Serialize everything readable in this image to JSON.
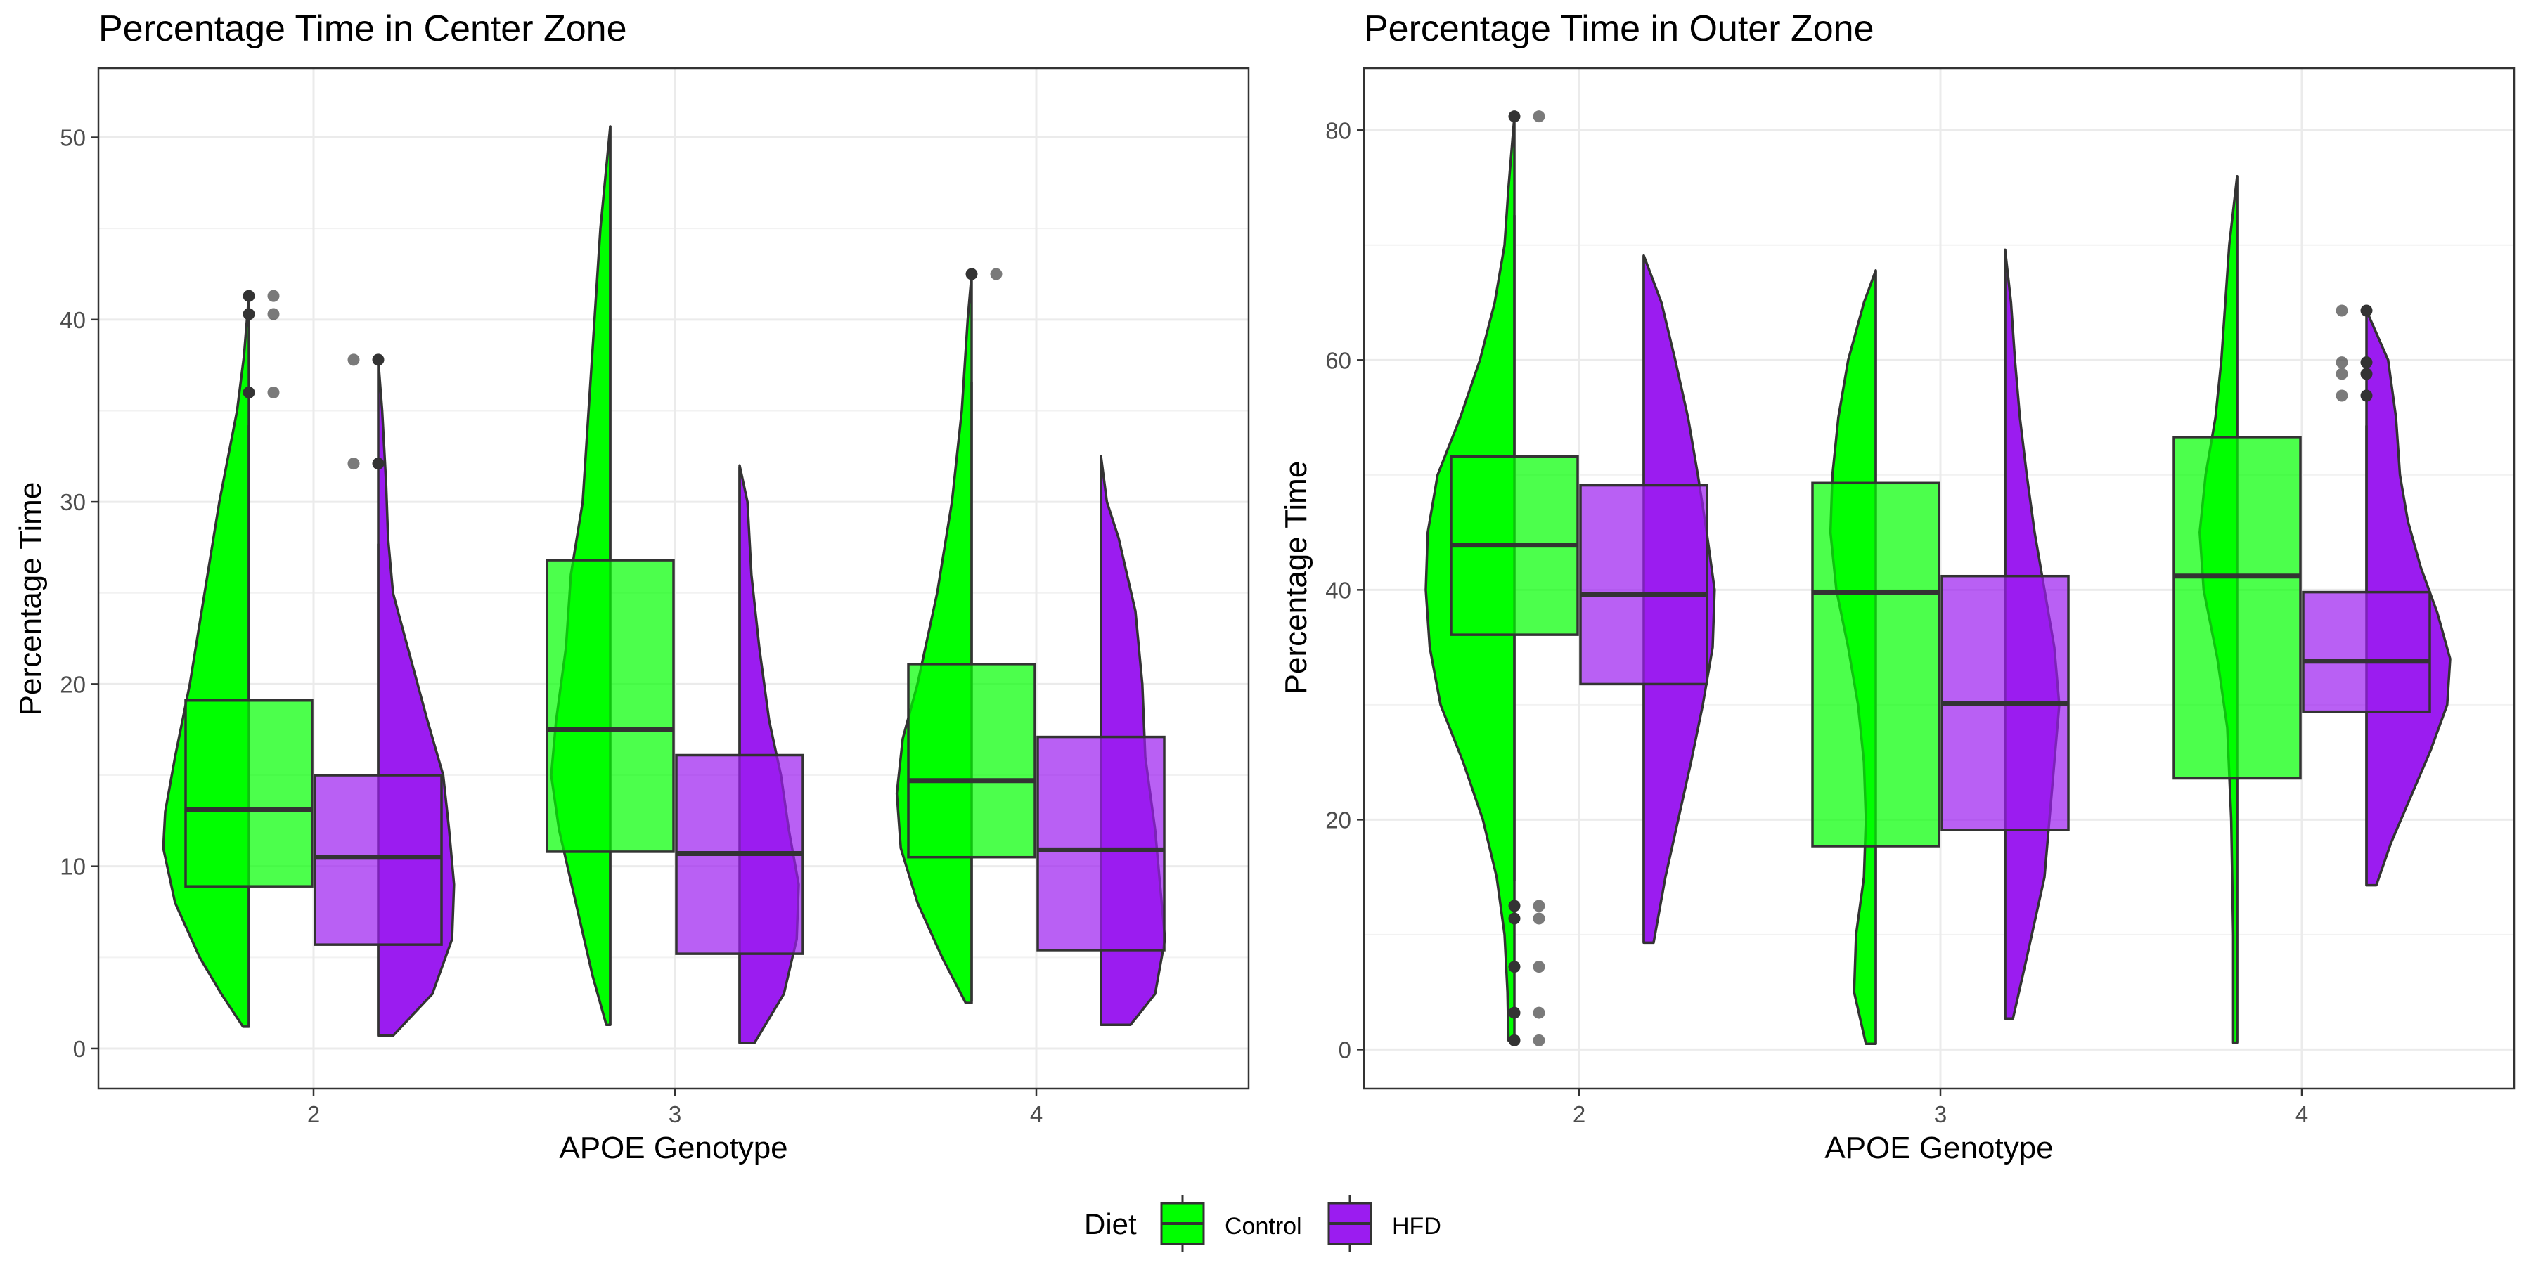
{
  "figure": {
    "legend": {
      "title": "Diet",
      "entries": [
        {
          "label": "Control",
          "color": "#00ff00"
        },
        {
          "label": "HFD",
          "color": "#9b1cf0"
        }
      ],
      "position": "bottom-center"
    }
  },
  "chart_data": [
    {
      "type": "violin+box",
      "title": "Percentage Time in Center Zone",
      "xlabel": "APOE Genotype",
      "ylabel": "Percentage Time",
      "categories": [
        "2",
        "3",
        "4"
      ],
      "ylim": [
        -2.2,
        53.8
      ],
      "yticks": [
        0,
        10,
        20,
        30,
        40,
        50
      ],
      "grid": true,
      "series": [
        {
          "name": "Control",
          "color": "#00ff00",
          "groups": [
            {
              "category": "2",
              "box": {
                "q1": 8.9,
                "median": 13.1,
                "q3": 19.1,
                "whisker_low": 1.2,
                "whisker_high": 34.2
              },
              "outliers": [
                36.0,
                40.3,
                41.3
              ],
              "violin": [
                [
                  1.2,
                  0.06
                ],
                [
                  3.0,
                  0.28
                ],
                [
                  5.0,
                  0.5
                ],
                [
                  8.0,
                  0.75
                ],
                [
                  11.0,
                  0.87
                ],
                [
                  13.0,
                  0.85
                ],
                [
                  16.0,
                  0.75
                ],
                [
                  20.0,
                  0.6
                ],
                [
                  25.0,
                  0.45
                ],
                [
                  30.0,
                  0.3
                ],
                [
                  35.0,
                  0.12
                ],
                [
                  38.0,
                  0.05
                ],
                [
                  41.3,
                  0.0
                ]
              ]
            },
            {
              "category": "3",
              "box": {
                "q1": 10.8,
                "median": 17.5,
                "q3": 26.8,
                "whisker_low": 1.3,
                "whisker_high": 50.6
              },
              "outliers": [],
              "violin": [
                [
                  1.3,
                  0.04
                ],
                [
                  4.0,
                  0.18
                ],
                [
                  8.0,
                  0.35
                ],
                [
                  12.0,
                  0.52
                ],
                [
                  15.0,
                  0.6
                ],
                [
                  18.0,
                  0.55
                ],
                [
                  22.0,
                  0.45
                ],
                [
                  26.0,
                  0.4
                ],
                [
                  30.0,
                  0.28
                ],
                [
                  35.0,
                  0.22
                ],
                [
                  40.0,
                  0.16
                ],
                [
                  45.0,
                  0.1
                ],
                [
                  50.6,
                  0.0
                ]
              ]
            },
            {
              "category": "4",
              "box": {
                "q1": 10.5,
                "median": 14.7,
                "q3": 21.1,
                "whisker_low": 2.6,
                "whisker_high": 36.6
              },
              "outliers": [
                42.5
              ],
              "violin": [
                [
                  2.5,
                  0.06
                ],
                [
                  5.0,
                  0.3
                ],
                [
                  8.0,
                  0.55
                ],
                [
                  11.0,
                  0.72
                ],
                [
                  14.0,
                  0.76
                ],
                [
                  17.0,
                  0.7
                ],
                [
                  20.0,
                  0.55
                ],
                [
                  25.0,
                  0.35
                ],
                [
                  30.0,
                  0.2
                ],
                [
                  35.0,
                  0.1
                ],
                [
                  40.0,
                  0.04
                ],
                [
                  42.5,
                  0.0
                ]
              ]
            }
          ]
        },
        {
          "name": "HFD",
          "color": "#9b1cf0",
          "groups": [
            {
              "category": "2",
              "box": {
                "q1": 5.7,
                "median": 10.5,
                "q3": 15.0,
                "whisker_low": 0.7,
                "whisker_high": 27.7
              },
              "outliers": [
                32.1,
                37.8
              ],
              "violin": [
                [
                  0.7,
                  0.15
                ],
                [
                  3.0,
                  0.55
                ],
                [
                  6.0,
                  0.75
                ],
                [
                  9.0,
                  0.77
                ],
                [
                  12.0,
                  0.72
                ],
                [
                  15.0,
                  0.66
                ],
                [
                  18.0,
                  0.5
                ],
                [
                  21.0,
                  0.35
                ],
                [
                  25.0,
                  0.15
                ],
                [
                  28.0,
                  0.1
                ],
                [
                  31.0,
                  0.08
                ],
                [
                  35.0,
                  0.04
                ],
                [
                  37.8,
                  0.0
                ]
              ]
            },
            {
              "category": "3",
              "box": {
                "q1": 5.2,
                "median": 10.7,
                "q3": 16.1,
                "whisker_low": 0.3,
                "whisker_high": 31.9
              },
              "outliers": [],
              "violin": [
                [
                  0.3,
                  0.15
                ],
                [
                  3.0,
                  0.45
                ],
                [
                  6.0,
                  0.58
                ],
                [
                  9.0,
                  0.6
                ],
                [
                  12.0,
                  0.5
                ],
                [
                  15.0,
                  0.42
                ],
                [
                  18.0,
                  0.3
                ],
                [
                  22.0,
                  0.2
                ],
                [
                  26.0,
                  0.12
                ],
                [
                  30.0,
                  0.08
                ],
                [
                  32.0,
                  0.0
                ]
              ]
            },
            {
              "category": "4",
              "box": {
                "q1": 5.4,
                "median": 10.9,
                "q3": 17.1,
                "whisker_low": 1.3,
                "whisker_high": 32.5
              },
              "outliers": [],
              "violin": [
                [
                  1.3,
                  0.3
                ],
                [
                  3.0,
                  0.55
                ],
                [
                  6.0,
                  0.65
                ],
                [
                  9.0,
                  0.6
                ],
                [
                  12.0,
                  0.55
                ],
                [
                  16.0,
                  0.45
                ],
                [
                  20.0,
                  0.42
                ],
                [
                  24.0,
                  0.35
                ],
                [
                  28.0,
                  0.18
                ],
                [
                  30.0,
                  0.06
                ],
                [
                  32.5,
                  0.0
                ]
              ]
            }
          ]
        }
      ]
    },
    {
      "type": "violin+box",
      "title": "Percentage Time in Outer Zone",
      "xlabel": "APOE Genotype",
      "ylabel": "Percentage Time",
      "categories": [
        "2",
        "3",
        "4"
      ],
      "ylim": [
        -3.4,
        85.4
      ],
      "yticks": [
        0,
        20,
        40,
        60,
        80
      ],
      "grid": true,
      "series": [
        {
          "name": "Control",
          "color": "#00ff00",
          "groups": [
            {
              "category": "2",
              "box": {
                "q1": 36.1,
                "median": 43.9,
                "q3": 51.6,
                "whisker_low": 14.7,
                "whisker_high": 72.6
              },
              "outliers": [
                0.8,
                3.2,
                7.2,
                11.4,
                12.5,
                81.2
              ],
              "violin": [
                [
                  0.8,
                  0.06
                ],
                [
                  5.0,
                  0.07
                ],
                [
                  10.0,
                  0.1
                ],
                [
                  15.0,
                  0.18
                ],
                [
                  20.0,
                  0.32
                ],
                [
                  25.0,
                  0.52
                ],
                [
                  30.0,
                  0.75
                ],
                [
                  35.0,
                  0.86
                ],
                [
                  40.0,
                  0.9
                ],
                [
                  45.0,
                  0.88
                ],
                [
                  50.0,
                  0.78
                ],
                [
                  55.0,
                  0.55
                ],
                [
                  60.0,
                  0.35
                ],
                [
                  65.0,
                  0.2
                ],
                [
                  70.0,
                  0.1
                ],
                [
                  75.0,
                  0.06
                ],
                [
                  81.2,
                  0.0
                ]
              ]
            },
            {
              "category": "3",
              "box": {
                "q1": 17.7,
                "median": 39.8,
                "q3": 49.3,
                "whisker_low": 0.5,
                "whisker_high": 67.8
              },
              "outliers": [],
              "violin": [
                [
                  0.5,
                  0.1
                ],
                [
                  5.0,
                  0.22
                ],
                [
                  10.0,
                  0.2
                ],
                [
                  15.0,
                  0.12
                ],
                [
                  20.0,
                  0.1
                ],
                [
                  25.0,
                  0.12
                ],
                [
                  30.0,
                  0.18
                ],
                [
                  35.0,
                  0.28
                ],
                [
                  40.0,
                  0.4
                ],
                [
                  45.0,
                  0.46
                ],
                [
                  50.0,
                  0.44
                ],
                [
                  55.0,
                  0.38
                ],
                [
                  60.0,
                  0.28
                ],
                [
                  65.0,
                  0.12
                ],
                [
                  67.8,
                  0.0
                ]
              ]
            },
            {
              "category": "4",
              "box": {
                "q1": 23.6,
                "median": 41.2,
                "q3": 53.3,
                "whisker_low": 0.6,
                "whisker_high": 76.0
              },
              "outliers": [],
              "violin": [
                [
                  0.6,
                  0.04
                ],
                [
                  10.0,
                  0.04
                ],
                [
                  20.0,
                  0.06
                ],
                [
                  28.0,
                  0.1
                ],
                [
                  34.0,
                  0.2
                ],
                [
                  40.0,
                  0.34
                ],
                [
                  45.0,
                  0.38
                ],
                [
                  50.0,
                  0.32
                ],
                [
                  55.0,
                  0.22
                ],
                [
                  60.0,
                  0.16
                ],
                [
                  65.0,
                  0.12
                ],
                [
                  70.0,
                  0.08
                ],
                [
                  76.0,
                  0.0
                ]
              ]
            }
          ]
        },
        {
          "name": "HFD",
          "color": "#9b1cf0",
          "groups": [
            {
              "category": "2",
              "box": {
                "q1": 31.8,
                "median": 39.6,
                "q3": 49.1,
                "whisker_low": 9.3,
                "whisker_high": 69.1
              },
              "outliers": [],
              "violin": [
                [
                  9.3,
                  0.1
                ],
                [
                  15.0,
                  0.22
                ],
                [
                  20.0,
                  0.35
                ],
                [
                  25.0,
                  0.48
                ],
                [
                  30.0,
                  0.6
                ],
                [
                  35.0,
                  0.7
                ],
                [
                  40.0,
                  0.72
                ],
                [
                  45.0,
                  0.64
                ],
                [
                  50.0,
                  0.55
                ],
                [
                  55.0,
                  0.45
                ],
                [
                  60.0,
                  0.32
                ],
                [
                  65.0,
                  0.18
                ],
                [
                  69.1,
                  0.0
                ]
              ]
            },
            {
              "category": "3",
              "box": {
                "q1": 19.1,
                "median": 30.1,
                "q3": 41.2,
                "whisker_low": 2.7,
                "whisker_high": 69.6
              },
              "outliers": [],
              "violin": [
                [
                  2.7,
                  0.08
                ],
                [
                  8.0,
                  0.22
                ],
                [
                  15.0,
                  0.4
                ],
                [
                  20.0,
                  0.45
                ],
                [
                  25.0,
                  0.5
                ],
                [
                  30.0,
                  0.55
                ],
                [
                  35.0,
                  0.5
                ],
                [
                  40.0,
                  0.4
                ],
                [
                  45.0,
                  0.3
                ],
                [
                  50.0,
                  0.22
                ],
                [
                  55.0,
                  0.15
                ],
                [
                  60.0,
                  0.1
                ],
                [
                  65.0,
                  0.06
                ],
                [
                  69.6,
                  0.0
                ]
              ]
            },
            {
              "category": "4",
              "box": {
                "q1": 29.4,
                "median": 33.8,
                "q3": 39.8,
                "whisker_low": 14.3,
                "whisker_high": 54.3
              },
              "outliers": [
                56.9,
                58.8,
                59.8,
                64.3
              ],
              "violin": [
                [
                  14.3,
                  0.1
                ],
                [
                  18.0,
                  0.25
                ],
                [
                  22.0,
                  0.45
                ],
                [
                  26.0,
                  0.65
                ],
                [
                  30.0,
                  0.82
                ],
                [
                  34.0,
                  0.85
                ],
                [
                  38.0,
                  0.72
                ],
                [
                  42.0,
                  0.55
                ],
                [
                  46.0,
                  0.42
                ],
                [
                  50.0,
                  0.34
                ],
                [
                  55.0,
                  0.3
                ],
                [
                  60.0,
                  0.22
                ],
                [
                  64.3,
                  0.0
                ]
              ]
            }
          ]
        }
      ]
    }
  ]
}
